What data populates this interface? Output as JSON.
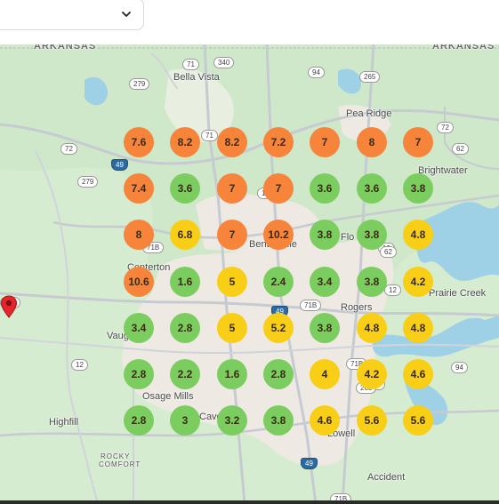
{
  "dropdown": {
    "icon": "chevron-down-icon"
  },
  "map": {
    "labels": {
      "arkansas_left": "ARKANSAS",
      "arkansas_right": "ARKANSAS",
      "bella_vista": "Bella Vista",
      "pea_ridge": "Pea Ridge",
      "brightwater": "Brightwater",
      "centerton": "Centerton",
      "bentonville": "Bentonville",
      "rogers": "Rogers",
      "vaughn": "Vaughn",
      "osage_mills": "Osage Mills",
      "highfill": "Highfill",
      "rocky_comfort_1": "ROCKY",
      "rocky_comfort_2": "COMFORT",
      "lowell": "Lowell",
      "accident": "Accident",
      "prairie_creek": "Prairie Creek",
      "flo": "Flo",
      "cave_springs": "Cave S"
    },
    "shields": [
      "71",
      "340",
      "279",
      "94",
      "265",
      "72",
      "62",
      "72",
      "49",
      "279",
      "71",
      "102",
      "12",
      "71B",
      "71B",
      "94",
      "12",
      "49",
      "71B",
      "49",
      "62",
      "12",
      "264",
      "265",
      "71B",
      "12"
    ],
    "markers": [
      [
        "7.6",
        "8.2",
        "8.2",
        "7.2",
        "7",
        "8",
        "7"
      ],
      [
        "7.4",
        "3.6",
        "7",
        "7",
        "3.6",
        "3.6",
        "3.8"
      ],
      [
        "8",
        "6.8",
        "7",
        "10.2",
        "3.8",
        "3.8",
        "4.8"
      ],
      [
        "10.6",
        "1.6",
        "5",
        "2.4",
        "3.4",
        "3.8",
        "4.2"
      ],
      [
        "3.4",
        "2.8",
        "5",
        "5.2",
        "3.8",
        "4.8",
        "4.8"
      ],
      [
        "2.8",
        "2.2",
        "1.6",
        "2.8",
        "4",
        "4.2",
        "4.6"
      ],
      [
        "2.8",
        "3",
        "3.2",
        "3.8",
        "4.6",
        "5.6",
        "5.6"
      ]
    ],
    "marker_colors": {
      "orange": "#f7843b",
      "green": "#7ccd5f",
      "yellow": "#f8cf16"
    },
    "pin_icon": "location-pin-icon"
  }
}
